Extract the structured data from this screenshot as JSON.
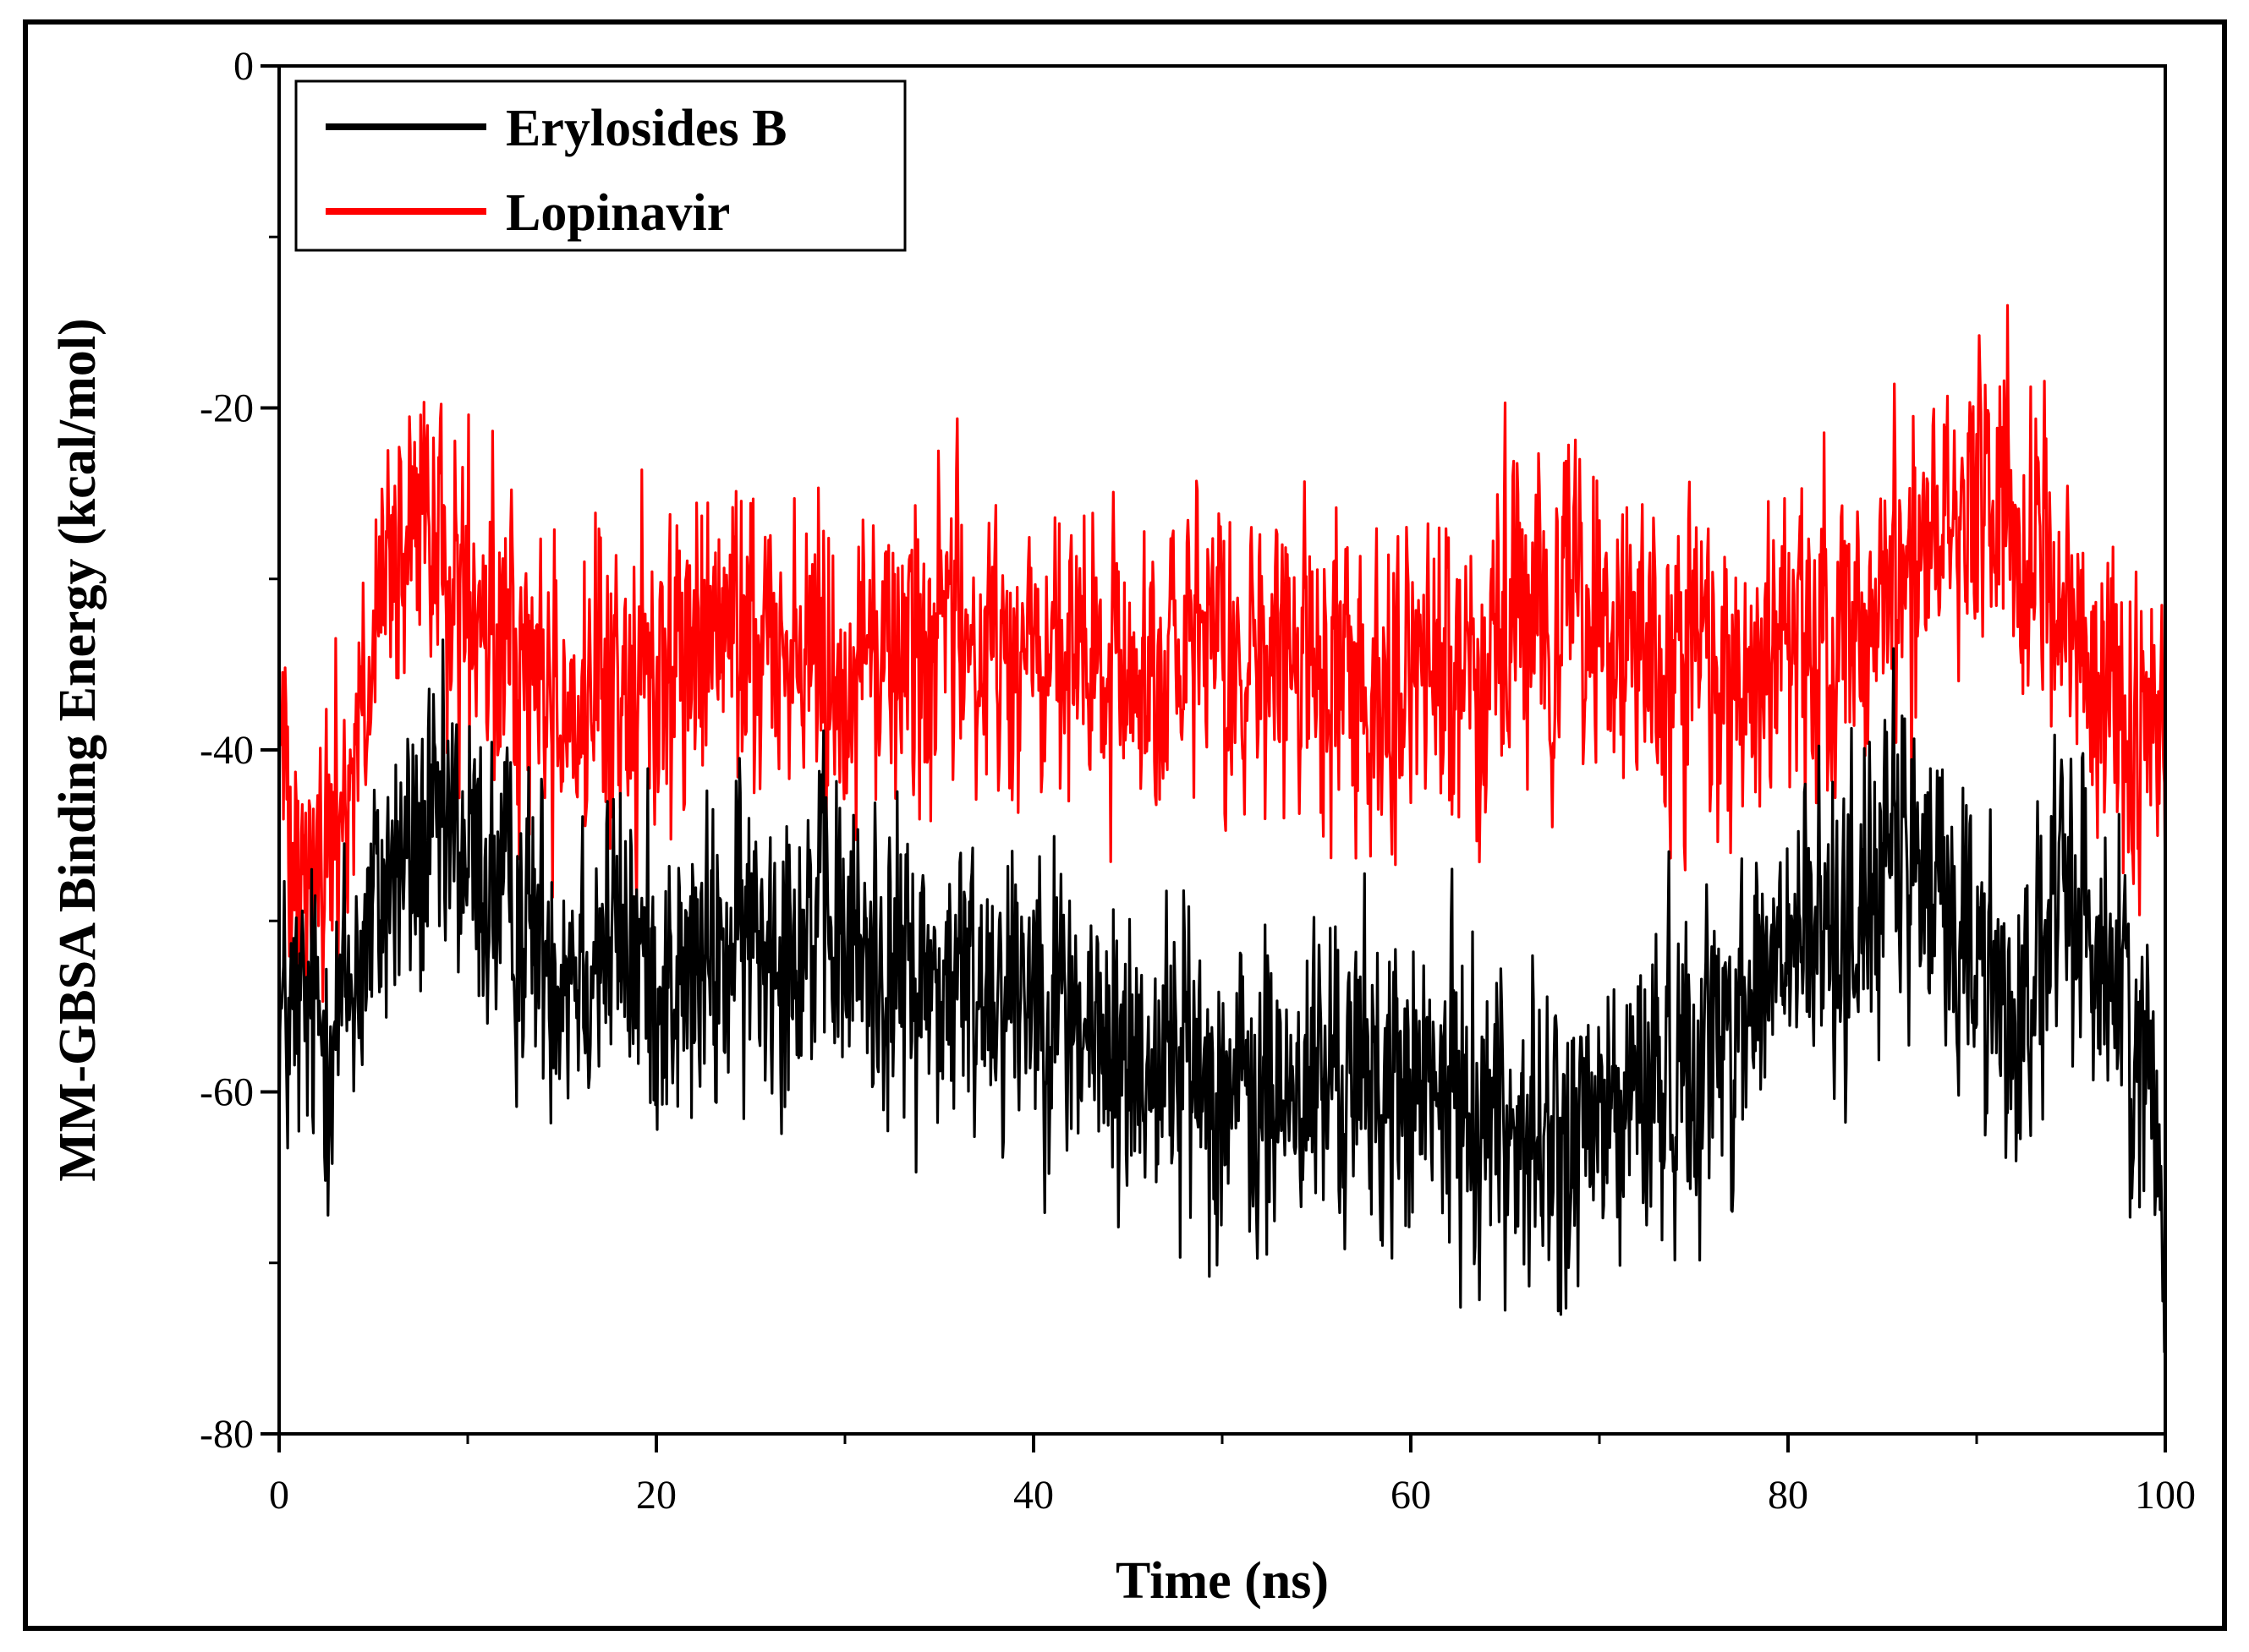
{
  "chart_data": {
    "type": "line",
    "xlabel": "Time (ns)",
    "ylabel": "MM-GBSA Binding Energy (kcal/mol)",
    "xlim": [
      0,
      100
    ],
    "ylim": [
      -80,
      0
    ],
    "xticks": [
      0,
      20,
      40,
      60,
      80,
      100
    ],
    "yticks": [
      0,
      -20,
      -40,
      -60,
      -80
    ],
    "grid": false,
    "legend_position": "top-left",
    "series": [
      {
        "name": "Erylosides B",
        "color": "#000000",
        "mean_profile": [
          [
            0,
            -56
          ],
          [
            3,
            -56
          ],
          [
            6,
            -47
          ],
          [
            9,
            -45
          ],
          [
            12,
            -49
          ],
          [
            15,
            -52
          ],
          [
            18,
            -51
          ],
          [
            21,
            -54
          ],
          [
            25,
            -51
          ],
          [
            28,
            -50
          ],
          [
            31,
            -52
          ],
          [
            35,
            -54
          ],
          [
            40,
            -53
          ],
          [
            44,
            -58
          ],
          [
            48,
            -58
          ],
          [
            52,
            -61
          ],
          [
            56,
            -59
          ],
          [
            60,
            -60
          ],
          [
            64,
            -61
          ],
          [
            68,
            -64
          ],
          [
            72,
            -60
          ],
          [
            76,
            -57
          ],
          [
            80,
            -52
          ],
          [
            83,
            -50
          ],
          [
            86,
            -46
          ],
          [
            89,
            -50
          ],
          [
            92,
            -56
          ],
          [
            95,
            -48
          ],
          [
            98,
            -55
          ],
          [
            100,
            -64
          ]
        ],
        "noise": 4.5,
        "min_value": -76
      },
      {
        "name": "Lopinavir",
        "color": "#ff0000",
        "mean_profile": [
          [
            0,
            -40
          ],
          [
            2,
            -48
          ],
          [
            4,
            -40
          ],
          [
            6,
            -30
          ],
          [
            8,
            -27
          ],
          [
            10,
            -33
          ],
          [
            13,
            -35
          ],
          [
            16,
            -38
          ],
          [
            19,
            -36
          ],
          [
            22,
            -34
          ],
          [
            25,
            -33
          ],
          [
            30,
            -35
          ],
          [
            35,
            -33
          ],
          [
            40,
            -35
          ],
          [
            45,
            -36
          ],
          [
            50,
            -35
          ],
          [
            55,
            -35
          ],
          [
            60,
            -36
          ],
          [
            65,
            -34
          ],
          [
            69,
            -31
          ],
          [
            72,
            -35
          ],
          [
            76,
            -36
          ],
          [
            80,
            -35
          ],
          [
            84,
            -33
          ],
          [
            87,
            -28
          ],
          [
            90,
            -24
          ],
          [
            93,
            -27
          ],
          [
            96,
            -36
          ],
          [
            98,
            -38
          ],
          [
            100,
            -42
          ]
        ],
        "noise": 4.5,
        "max_value": -14
      }
    ]
  },
  "colors": {
    "frame": "#000000",
    "axis": "#000000",
    "background": "#ffffff"
  }
}
